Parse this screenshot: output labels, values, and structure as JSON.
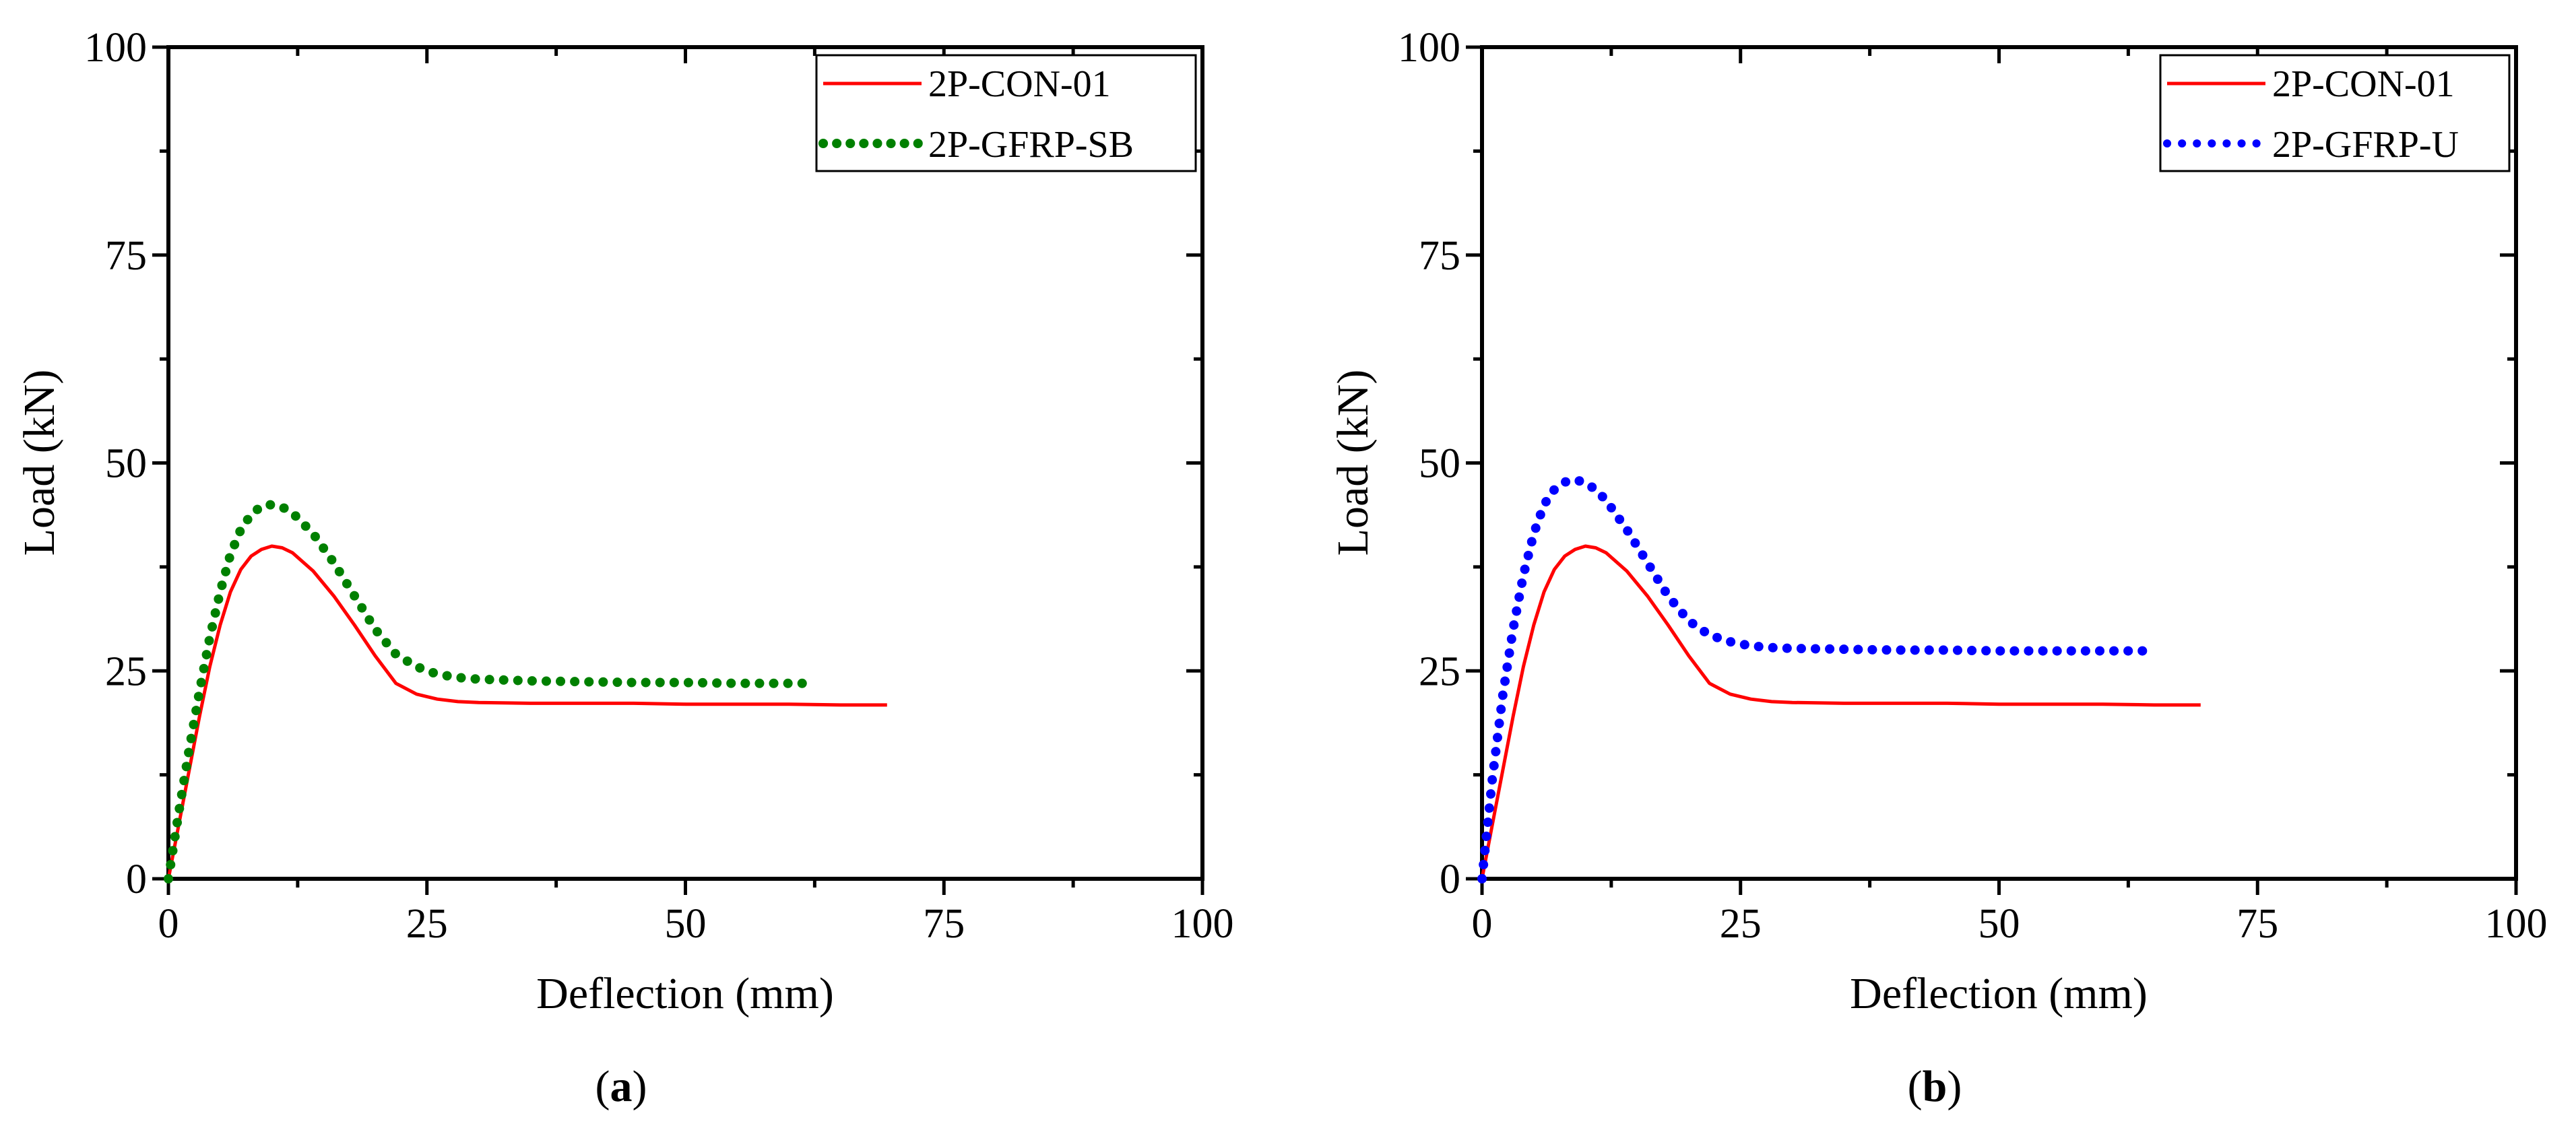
{
  "chart_data": [
    {
      "id": "a",
      "type": "line",
      "caption": {
        "open": "(",
        "label": "a",
        "close": ")"
      },
      "xlabel": "Deflection (mm)",
      "ylabel": "Load (kN)",
      "xlim": [
        0,
        100
      ],
      "ylim": [
        0,
        100
      ],
      "xticks": [
        "0",
        "25",
        "50",
        "75",
        "100"
      ],
      "yticks": [
        "0",
        "25",
        "50",
        "75",
        "100"
      ],
      "legend_position": "top-right",
      "series": [
        {
          "name": "2P-CON-01",
          "color": "#ff0000",
          "style": "solid",
          "x": [
            0,
            1,
            2,
            3,
            4,
            5,
            6,
            7,
            8,
            9,
            10,
            11,
            12,
            14,
            16,
            18,
            20,
            22,
            24,
            26,
            28,
            30,
            35,
            40,
            45,
            50,
            55,
            60,
            65,
            69.5
          ],
          "y": [
            0,
            6.5,
            13,
            19.5,
            25.5,
            30.5,
            34.5,
            37.2,
            38.8,
            39.6,
            40,
            39.8,
            39.2,
            37,
            34,
            30.5,
            26.8,
            23.5,
            22.2,
            21.6,
            21.3,
            21.2,
            21.1,
            21.1,
            21.1,
            21,
            21,
            21,
            20.9,
            20.9
          ]
        },
        {
          "name": "2P-GFRP-SB",
          "color": "#008000",
          "style": "dotted",
          "x": [
            0,
            1,
            2,
            3,
            4,
            5,
            6,
            7,
            8,
            9,
            10,
            11,
            12,
            14,
            16,
            18,
            20,
            22,
            24,
            26,
            28,
            30,
            35,
            40,
            45,
            50,
            55,
            60,
            62.5
          ],
          "y": [
            0,
            8,
            15.5,
            22.5,
            29,
            34.5,
            39,
            42,
            43.8,
            44.8,
            45,
            44.7,
            44,
            41.5,
            38,
            34,
            30,
            27,
            25.5,
            24.6,
            24.2,
            24,
            23.8,
            23.7,
            23.6,
            23.6,
            23.5,
            23.5,
            23.5
          ]
        }
      ]
    },
    {
      "id": "b",
      "type": "line",
      "caption": {
        "open": "(",
        "label": "b",
        "close": ")"
      },
      "xlabel": "Deflection (mm)",
      "ylabel": "Load (kN)",
      "xlim": [
        0,
        100
      ],
      "ylim": [
        0,
        100
      ],
      "xticks": [
        "0",
        "25",
        "50",
        "75",
        "100"
      ],
      "yticks": [
        "0",
        "25",
        "50",
        "75",
        "100"
      ],
      "legend_position": "top-right",
      "series": [
        {
          "name": "2P-CON-01",
          "color": "#ff0000",
          "style": "solid",
          "x": [
            0,
            1,
            2,
            3,
            4,
            5,
            6,
            7,
            8,
            9,
            10,
            11,
            12,
            14,
            16,
            18,
            20,
            22,
            24,
            26,
            28,
            30,
            35,
            40,
            45,
            50,
            55,
            60,
            65,
            69.5
          ],
          "y": [
            0,
            6.5,
            13,
            19.5,
            25.5,
            30.5,
            34.5,
            37.2,
            38.8,
            39.6,
            40,
            39.8,
            39.2,
            37,
            34,
            30.5,
            26.8,
            23.5,
            22.2,
            21.6,
            21.3,
            21.2,
            21.1,
            21.1,
            21.1,
            21,
            21,
            21,
            20.9,
            20.9
          ]
        },
        {
          "name": "2P-GFRP-U",
          "color": "#0000ff",
          "style": "dotted",
          "x": [
            0,
            1,
            2,
            3,
            4,
            5,
            6,
            7,
            8,
            9,
            10,
            11,
            12,
            14,
            16,
            18,
            20,
            22,
            24,
            26,
            28,
            30,
            35,
            40,
            45,
            50,
            55,
            60,
            64.5
          ],
          "y": [
            0,
            12,
            22,
            30,
            36.5,
            41.5,
            45,
            46.8,
            47.7,
            48,
            47.6,
            46.8,
            45.5,
            42,
            38,
            34,
            31,
            29.3,
            28.5,
            28,
            27.8,
            27.7,
            27.6,
            27.5,
            27.5,
            27.4,
            27.4,
            27.4,
            27.4
          ]
        }
      ]
    }
  ]
}
